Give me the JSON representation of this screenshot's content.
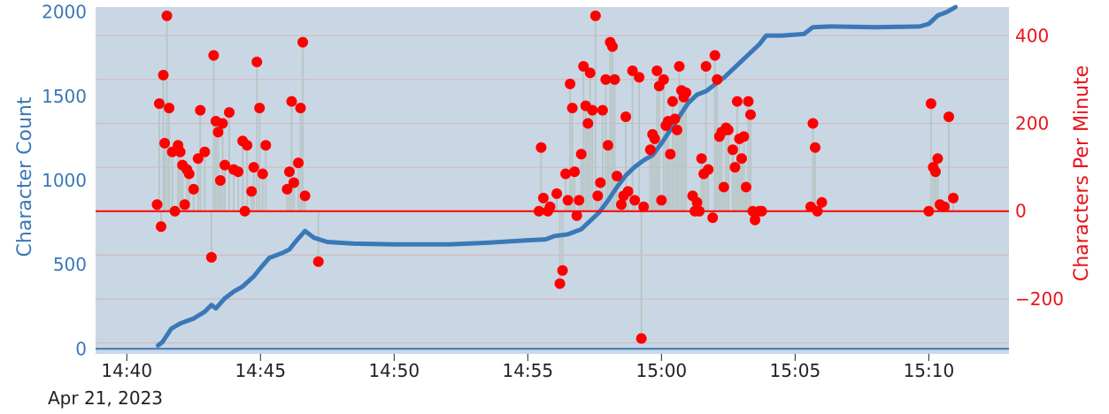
{
  "chart_data": {
    "type": "line",
    "title": "",
    "x_axis": {
      "ticks": [
        "14:40",
        "14:45",
        "14:50",
        "14:55",
        "15:00",
        "15:05",
        "15:10"
      ],
      "date_label": "Apr 21, 2023",
      "range": [
        "14:38:50",
        "15:13:00"
      ]
    },
    "y_left": {
      "label": "Character Count",
      "range": [
        -30,
        2030
      ],
      "ticks": [
        0,
        500,
        1000,
        1500,
        2000
      ],
      "tick_labels": [
        "0",
        "500",
        "1000",
        "1500",
        "2000"
      ]
    },
    "y_right": {
      "label": "Characters Per Minute",
      "range": [
        -325,
        465
      ],
      "ticks": [
        -200,
        0,
        200,
        400
      ],
      "tick_labels": [
        "−200",
        "0",
        "200",
        "400"
      ]
    },
    "grid": true,
    "legend": "none",
    "colors": {
      "plot_bg": "#c9d7e4",
      "grid": "#d5b5b9",
      "count_line": "#3a78b8",
      "cpm_marker": "#ff0000",
      "cpm_zero_line": "#ff0000",
      "stem": "#b8c6c6"
    },
    "series": [
      {
        "axis": "left",
        "kind": "line",
        "points": [
          [
            "14:41:10",
            20
          ],
          [
            "14:41:20",
            40
          ],
          [
            "14:41:40",
            120
          ],
          [
            "14:42:00",
            150
          ],
          [
            "14:42:30",
            180
          ],
          [
            "14:42:55",
            220
          ],
          [
            "14:43:10",
            260
          ],
          [
            "14:43:20",
            240
          ],
          [
            "14:43:40",
            300
          ],
          [
            "14:44:00",
            340
          ],
          [
            "14:44:20",
            370
          ],
          [
            "14:44:45",
            430
          ],
          [
            "14:45:00",
            480
          ],
          [
            "14:45:20",
            540
          ],
          [
            "14:45:50",
            570
          ],
          [
            "14:46:05",
            590
          ],
          [
            "14:46:20",
            640
          ],
          [
            "14:46:40",
            700
          ],
          [
            "14:47:00",
            660
          ],
          [
            "14:47:30",
            635
          ],
          [
            "14:48:30",
            625
          ],
          [
            "14:50:00",
            620
          ],
          [
            "14:52:00",
            620
          ],
          [
            "14:53:30",
            630
          ],
          [
            "14:55:00",
            645
          ],
          [
            "14:55:40",
            650
          ],
          [
            "14:56:00",
            670
          ],
          [
            "14:56:30",
            680
          ],
          [
            "14:57:00",
            710
          ],
          [
            "14:57:20",
            760
          ],
          [
            "14:57:40",
            810
          ],
          [
            "14:58:00",
            880
          ],
          [
            "14:58:20",
            960
          ],
          [
            "14:58:40",
            1030
          ],
          [
            "14:59:00",
            1080
          ],
          [
            "14:59:20",
            1120
          ],
          [
            "14:59:40",
            1150
          ],
          [
            "15:00:00",
            1220
          ],
          [
            "15:00:20",
            1300
          ],
          [
            "15:00:40",
            1380
          ],
          [
            "15:01:00",
            1460
          ],
          [
            "15:01:20",
            1510
          ],
          [
            "15:01:40",
            1530
          ],
          [
            "15:02:00",
            1570
          ],
          [
            "15:02:20",
            1610
          ],
          [
            "15:02:40",
            1660
          ],
          [
            "15:03:00",
            1710
          ],
          [
            "15:03:20",
            1760
          ],
          [
            "15:03:40",
            1810
          ],
          [
            "15:03:55",
            1860
          ],
          [
            "15:04:30",
            1860
          ],
          [
            "15:05:20",
            1870
          ],
          [
            "15:05:40",
            1910
          ],
          [
            "15:06:20",
            1915
          ],
          [
            "15:08:00",
            1910
          ],
          [
            "15:09:40",
            1915
          ],
          [
            "15:10:00",
            1930
          ],
          [
            "15:10:20",
            1980
          ],
          [
            "15:10:40",
            2000
          ],
          [
            "15:11:00",
            2030
          ]
        ]
      },
      {
        "axis": "right",
        "kind": "scatter",
        "points": [
          [
            "14:41:08",
            15
          ],
          [
            "14:41:13",
            245
          ],
          [
            "14:41:17",
            -35
          ],
          [
            "14:41:22",
            310
          ],
          [
            "14:41:25",
            155
          ],
          [
            "14:41:30",
            445
          ],
          [
            "14:41:35",
            235
          ],
          [
            "14:41:42",
            135
          ],
          [
            "14:41:48",
            0
          ],
          [
            "14:41:55",
            150
          ],
          [
            "14:42:00",
            135
          ],
          [
            "14:42:05",
            105
          ],
          [
            "14:42:10",
            15
          ],
          [
            "14:42:15",
            95
          ],
          [
            "14:42:20",
            85
          ],
          [
            "14:42:30",
            50
          ],
          [
            "14:42:40",
            120
          ],
          [
            "14:42:45",
            230
          ],
          [
            "14:42:55",
            135
          ],
          [
            "14:43:10",
            -105
          ],
          [
            "14:43:15",
            355
          ],
          [
            "14:43:20",
            205
          ],
          [
            "14:43:25",
            180
          ],
          [
            "14:43:30",
            70
          ],
          [
            "14:43:35",
            200
          ],
          [
            "14:43:40",
            105
          ],
          [
            "14:43:50",
            225
          ],
          [
            "14:44:00",
            95
          ],
          [
            "14:44:10",
            90
          ],
          [
            "14:44:20",
            160
          ],
          [
            "14:44:25",
            0
          ],
          [
            "14:44:30",
            150
          ],
          [
            "14:44:40",
            45
          ],
          [
            "14:44:45",
            100
          ],
          [
            "14:44:52",
            340
          ],
          [
            "14:44:58",
            235
          ],
          [
            "14:45:05",
            85
          ],
          [
            "14:45:12",
            150
          ],
          [
            "14:46:00",
            50
          ],
          [
            "14:46:05",
            90
          ],
          [
            "14:46:10",
            250
          ],
          [
            "14:46:15",
            65
          ],
          [
            "14:46:25",
            110
          ],
          [
            "14:46:30",
            235
          ],
          [
            "14:46:35",
            385
          ],
          [
            "14:46:40",
            35
          ],
          [
            "14:47:10",
            -115
          ],
          [
            "14:55:25",
            0
          ],
          [
            "14:55:30",
            145
          ],
          [
            "14:55:35",
            30
          ],
          [
            "14:55:45",
            0
          ],
          [
            "14:55:50",
            10
          ],
          [
            "14:56:05",
            40
          ],
          [
            "14:56:12",
            -165
          ],
          [
            "14:56:18",
            -135
          ],
          [
            "14:56:25",
            85
          ],
          [
            "14:56:30",
            25
          ],
          [
            "14:56:35",
            290
          ],
          [
            "14:56:40",
            235
          ],
          [
            "14:56:45",
            90
          ],
          [
            "14:56:50",
            -10
          ],
          [
            "14:56:55",
            25
          ],
          [
            "14:57:00",
            130
          ],
          [
            "14:57:05",
            330
          ],
          [
            "14:57:10",
            240
          ],
          [
            "14:57:15",
            200
          ],
          [
            "14:57:20",
            315
          ],
          [
            "14:57:25",
            230
          ],
          [
            "14:57:32",
            445
          ],
          [
            "14:57:37",
            35
          ],
          [
            "14:57:43",
            65
          ],
          [
            "14:57:48",
            230
          ],
          [
            "14:57:55",
            300
          ],
          [
            "14:58:00",
            150
          ],
          [
            "14:58:05",
            385
          ],
          [
            "14:58:10",
            375
          ],
          [
            "14:58:15",
            300
          ],
          [
            "14:58:20",
            80
          ],
          [
            "14:58:30",
            15
          ],
          [
            "14:58:35",
            35
          ],
          [
            "14:58:40",
            215
          ],
          [
            "14:58:45",
            45
          ],
          [
            "14:58:55",
            320
          ],
          [
            "14:59:00",
            25
          ],
          [
            "14:59:10",
            305
          ],
          [
            "14:59:15",
            -290
          ],
          [
            "14:59:20",
            10
          ],
          [
            "14:59:35",
            140
          ],
          [
            "14:59:40",
            175
          ],
          [
            "14:59:45",
            165
          ],
          [
            "14:59:50",
            320
          ],
          [
            "14:59:55",
            285
          ],
          [
            "15:00:00",
            25
          ],
          [
            "15:00:05",
            300
          ],
          [
            "15:00:10",
            195
          ],
          [
            "15:00:15",
            205
          ],
          [
            "15:00:20",
            130
          ],
          [
            "15:00:25",
            250
          ],
          [
            "15:00:30",
            210
          ],
          [
            "15:00:35",
            185
          ],
          [
            "15:00:40",
            330
          ],
          [
            "15:00:45",
            275
          ],
          [
            "15:00:50",
            260
          ],
          [
            "15:00:55",
            270
          ],
          [
            "15:01:10",
            35
          ],
          [
            "15:01:15",
            0
          ],
          [
            "15:01:20",
            20
          ],
          [
            "15:01:25",
            0
          ],
          [
            "15:01:30",
            120
          ],
          [
            "15:01:35",
            85
          ],
          [
            "15:01:40",
            330
          ],
          [
            "15:01:45",
            95
          ],
          [
            "15:01:55",
            -15
          ],
          [
            "15:02:00",
            355
          ],
          [
            "15:02:05",
            300
          ],
          [
            "15:02:10",
            170
          ],
          [
            "15:02:15",
            180
          ],
          [
            "15:02:20",
            55
          ],
          [
            "15:02:25",
            190
          ],
          [
            "15:02:30",
            185
          ],
          [
            "15:02:40",
            140
          ],
          [
            "15:02:45",
            100
          ],
          [
            "15:02:50",
            250
          ],
          [
            "15:02:55",
            165
          ],
          [
            "15:03:00",
            120
          ],
          [
            "15:03:05",
            170
          ],
          [
            "15:03:10",
            55
          ],
          [
            "15:03:15",
            250
          ],
          [
            "15:03:20",
            220
          ],
          [
            "15:03:25",
            0
          ],
          [
            "15:03:30",
            -20
          ],
          [
            "15:03:40",
            0
          ],
          [
            "15:03:45",
            0
          ],
          [
            "15:05:35",
            10
          ],
          [
            "15:05:40",
            200
          ],
          [
            "15:05:45",
            145
          ],
          [
            "15:05:50",
            0
          ],
          [
            "15:06:00",
            20
          ],
          [
            "15:10:00",
            0
          ],
          [
            "15:10:05",
            245
          ],
          [
            "15:10:10",
            100
          ],
          [
            "15:10:15",
            90
          ],
          [
            "15:10:20",
            120
          ],
          [
            "15:10:25",
            15
          ],
          [
            "15:10:30",
            10
          ],
          [
            "15:10:35",
            10
          ],
          [
            "15:10:45",
            215
          ],
          [
            "15:10:55",
            30
          ]
        ]
      }
    ]
  }
}
